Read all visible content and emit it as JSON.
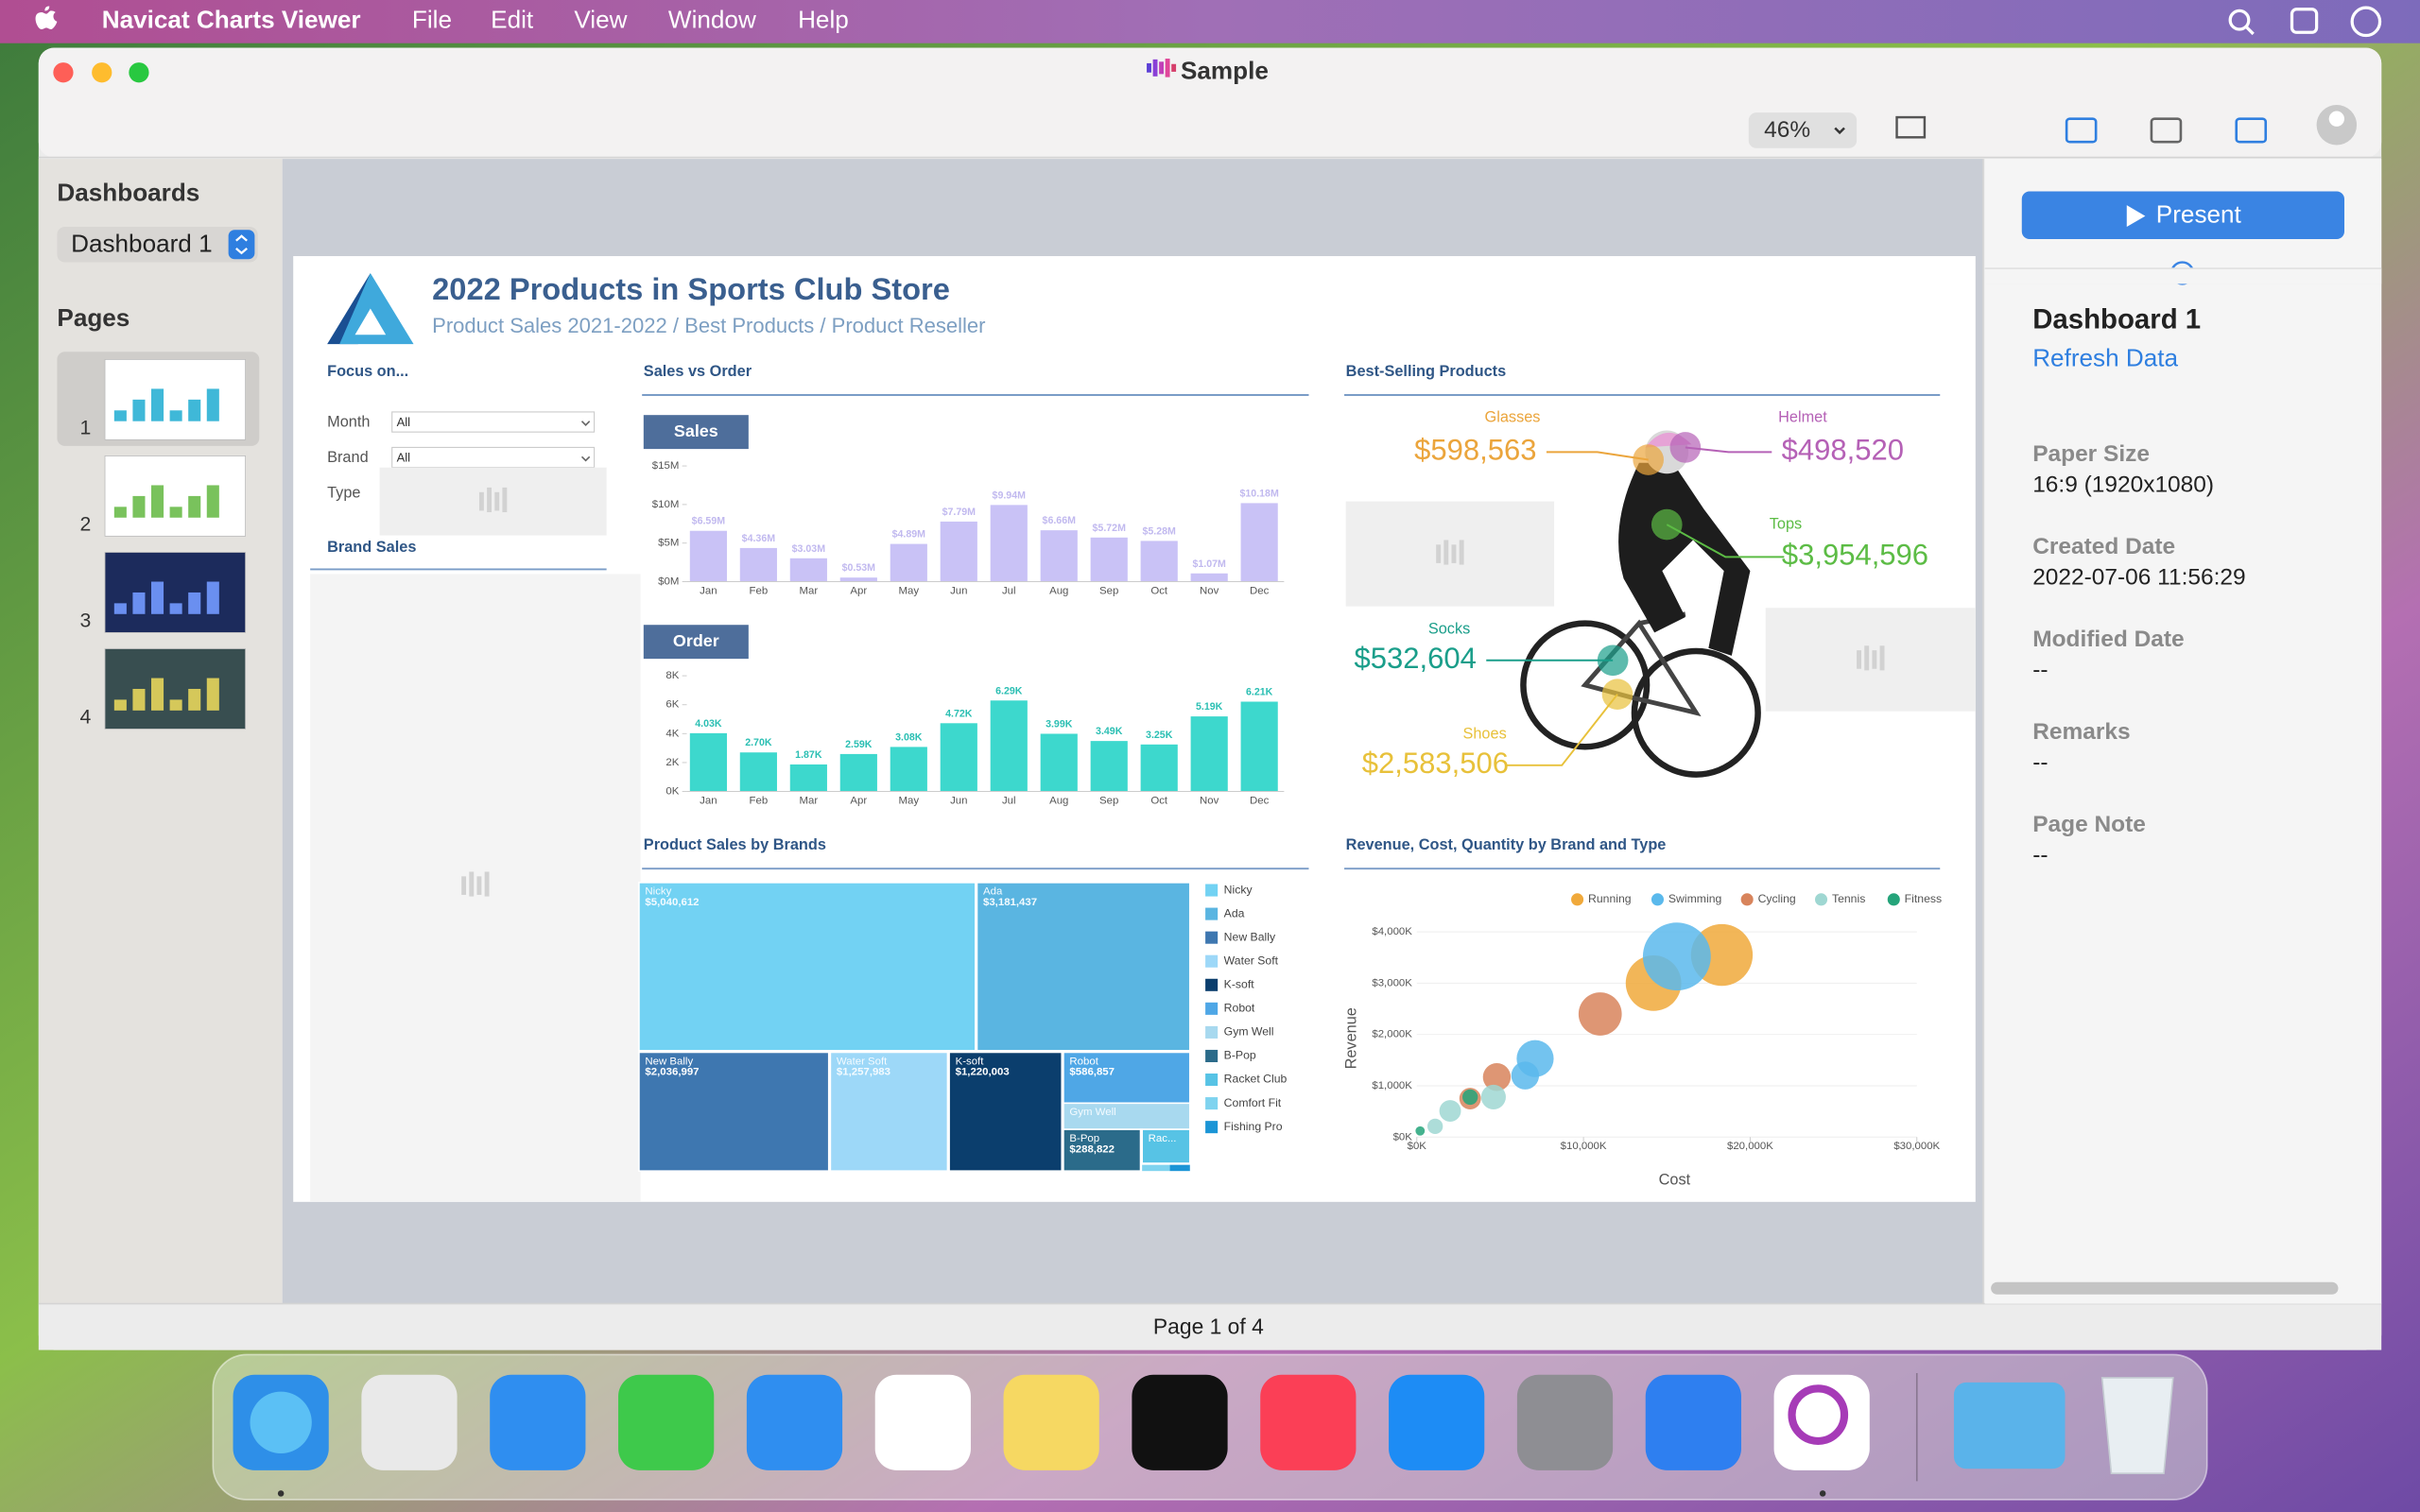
{
  "menu_bar": {
    "app": "Navicat Charts Viewer",
    "items": [
      "File",
      "Edit",
      "View",
      "Window",
      "Help"
    ]
  },
  "window": {
    "title": "Sample",
    "zoom": "46%",
    "status": "Page 1 of 4"
  },
  "sidebar": {
    "dashboards_label": "Dashboards",
    "dashboard": "Dashboard 1",
    "pages_label": "Pages",
    "pages": [
      "1",
      "2",
      "3",
      "4"
    ]
  },
  "inspector": {
    "present": "Present",
    "name": "Dashboard 1",
    "refresh": "Refresh Data",
    "fields": [
      {
        "label": "Paper Size",
        "value": "16:9 (1920x1080)"
      },
      {
        "label": "Created Date",
        "value": "2022-07-06 11:56:29"
      },
      {
        "label": "Modified Date",
        "value": "--"
      },
      {
        "label": "Remarks",
        "value": "--"
      },
      {
        "label": "Page Note",
        "value": "--"
      }
    ]
  },
  "dashboard": {
    "title": "2022 Products in Sports Club Store",
    "subtitle": "Product Sales 2021-2022 / Best Products / Product Reseller",
    "filters": {
      "title": "Focus on...",
      "fields": [
        {
          "label": "Month",
          "value": "All"
        },
        {
          "label": "Brand",
          "value": "All"
        },
        {
          "label": "Type"
        }
      ]
    },
    "brand_sales_title": "Brand Sales",
    "sales_vs_order": {
      "title": "Sales vs Order",
      "months": [
        "Jan",
        "Feb",
        "Mar",
        "Apr",
        "May",
        "Jun",
        "Jul",
        "Aug",
        "Sep",
        "Oct",
        "Nov",
        "Dec"
      ],
      "sales": {
        "label": "Sales",
        "color": "#c9c2f6",
        "values": [
          6.59,
          4.36,
          3.03,
          0.53,
          4.89,
          7.79,
          9.94,
          6.66,
          5.72,
          5.28,
          1.07,
          10.18
        ],
        "value_labels": [
          "$6.59M",
          "$4.36M",
          "$3.03M",
          "$0.53M",
          "$4.89M",
          "$7.79M",
          "$9.94M",
          "$6.66M",
          "$5.72M",
          "$5.28M",
          "$1.07M",
          "$10.18M"
        ],
        "ylim": [
          0,
          15
        ],
        "yticks": [
          {
            "value": 0,
            "label": "$0M"
          },
          {
            "value": 5,
            "label": "$5M"
          },
          {
            "value": 10,
            "label": "$10M"
          },
          {
            "value": 15,
            "label": "$15M"
          }
        ]
      },
      "order": {
        "label": "Order",
        "color": "#3dd8cd",
        "values": [
          4030,
          2700,
          1870,
          2590,
          3080,
          4720,
          6290,
          3990,
          3490,
          3250,
          5190,
          6210
        ],
        "value_labels": [
          "4.03K",
          "2.70K",
          "1.87K",
          "2.59K",
          "3.08K",
          "4.72K",
          "6.29K",
          "3.99K",
          "3.49K",
          "3.25K",
          "5.19K",
          "6.21K"
        ],
        "ylim": [
          0,
          8000
        ],
        "yticks": [
          {
            "value": 0,
            "label": "0K"
          },
          {
            "value": 2000,
            "label": "2K"
          },
          {
            "value": 4000,
            "label": "4K"
          },
          {
            "value": 6000,
            "label": "6K"
          },
          {
            "value": 8000,
            "label": "8K"
          }
        ]
      }
    },
    "best_selling": {
      "title": "Best-Selling Products",
      "items": [
        {
          "name": "Glasses",
          "value": "$598,563",
          "color": "#eba53c"
        },
        {
          "name": "Helmet",
          "value": "$498,520",
          "color": "#b561b6"
        },
        {
          "name": "Tops",
          "value": "$3,954,596",
          "color": "#5cbc45"
        },
        {
          "name": "Socks",
          "value": "$532,604",
          "color": "#1a9e8a"
        },
        {
          "name": "Shoes",
          "value": "$2,583,506",
          "color": "#e8c13a"
        }
      ]
    },
    "treemap": {
      "title": "Product Sales by Brands",
      "brands": [
        {
          "name": "Nicky",
          "color": "#72d2f3"
        },
        {
          "name": "Ada",
          "color": "#5ab5e1"
        },
        {
          "name": "New Bally",
          "color": "#3e77b0"
        },
        {
          "name": "Water Soft",
          "color": "#9dd8f8"
        },
        {
          "name": "K-soft",
          "color": "#0b3e6d"
        },
        {
          "name": "Robot",
          "color": "#4fa7e6"
        },
        {
          "name": "Gym Well",
          "color": "#a8d9ef"
        },
        {
          "name": "B-Pop",
          "color": "#2b6b8a"
        },
        {
          "name": "Racket Club",
          "color": "#57c3e5"
        },
        {
          "name": "Comfort Fit",
          "color": "#7fd3ef"
        },
        {
          "name": "Fishing Pro",
          "color": "#1b95d6"
        }
      ],
      "cells": [
        {
          "label": "Nicky",
          "value": 5040612,
          "value_label": "$5,040,612"
        },
        {
          "label": "Ada",
          "value": 3181437,
          "value_label": "$3,181,437"
        },
        {
          "label": "New Bally",
          "value": 2036997,
          "value_label": "$2,036,997"
        },
        {
          "label": "Water Soft",
          "value": 1257983,
          "value_label": "$1,257,983"
        },
        {
          "label": "K-soft",
          "value": 1220003,
          "value_label": "$1,220,003"
        },
        {
          "label": "Robot",
          "value": 586857,
          "value_label": "$586,857"
        },
        {
          "label": "Gym Well"
        },
        {
          "label": "B-Pop",
          "value": 288822,
          "value_label": "$288,822"
        },
        {
          "label": "Rac..."
        }
      ]
    },
    "bubble": {
      "title": "Revenue, Cost, Quantity by Brand and Type",
      "x_label": "Cost",
      "y_label": "Revenue",
      "xlim": [
        0,
        30000
      ],
      "ylim": [
        0,
        4000
      ],
      "xticks": [
        {
          "value": 0,
          "label": "$0K"
        },
        {
          "value": 10000,
          "label": "$10,000K"
        },
        {
          "value": 20000,
          "label": "$20,000K"
        },
        {
          "value": 30000,
          "label": "$30,000K"
        }
      ],
      "yticks": [
        {
          "value": 0,
          "label": "$0K"
        },
        {
          "value": 1000,
          "label": "$1,000K"
        },
        {
          "value": 2000,
          "label": "$2,000K"
        },
        {
          "value": 3000,
          "label": "$3,000K"
        },
        {
          "value": 4000,
          "label": "$4,000K"
        }
      ],
      "series": [
        {
          "name": "Running",
          "color": "#f0a93b",
          "x": [
            14200,
            18300
          ],
          "values": [
            3000,
            3550
          ],
          "sizes": [
            18,
            20
          ]
        },
        {
          "name": "Swimming",
          "color": "#5ab9ec",
          "x": [
            15600,
            7100,
            6500
          ],
          "values": [
            3520,
            1530,
            1200
          ],
          "sizes": [
            22,
            12,
            9
          ]
        },
        {
          "name": "Cycling",
          "color": "#d8845c",
          "x": [
            11000,
            4800,
            3200
          ],
          "values": [
            2400,
            1170,
            750
          ],
          "sizes": [
            14,
            9,
            7
          ]
        },
        {
          "name": "Tennis",
          "color": "#9fd7d2",
          "x": [
            4600,
            2000,
            1100
          ],
          "values": [
            780,
            510,
            210
          ],
          "sizes": [
            8,
            7,
            5
          ]
        },
        {
          "name": "Fitness",
          "color": "#25a47a",
          "x": [
            3200,
            200
          ],
          "values": [
            780,
            120
          ],
          "sizes": [
            5,
            3
          ]
        }
      ]
    }
  }
}
